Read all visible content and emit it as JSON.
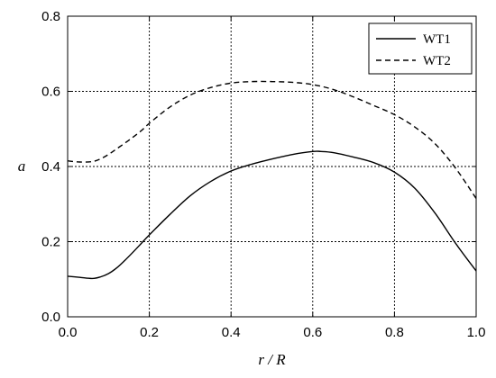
{
  "chart_data": {
    "type": "line",
    "xlabel": "r / R",
    "ylabel": "a",
    "xlim": [
      0.0,
      1.0
    ],
    "ylim": [
      0.0,
      0.8
    ],
    "xticks": [
      "0.0",
      "0.2",
      "0.4",
      "0.6",
      "0.8",
      "1.0"
    ],
    "yticks": [
      "0.0",
      "0.2",
      "0.4",
      "0.6",
      "0.8"
    ],
    "grid": true,
    "legend_position": "top-right",
    "series": [
      {
        "name": "WT1",
        "style": "solid",
        "color": "#000000",
        "x": [
          0.0,
          0.03,
          0.06,
          0.08,
          0.1,
          0.12,
          0.14,
          0.16,
          0.18,
          0.2,
          0.25,
          0.3,
          0.35,
          0.4,
          0.45,
          0.5,
          0.55,
          0.6,
          0.62,
          0.65,
          0.7,
          0.75,
          0.8,
          0.85,
          0.9,
          0.95,
          1.0
        ],
        "y": [
          0.108,
          0.105,
          0.102,
          0.106,
          0.115,
          0.13,
          0.15,
          0.172,
          0.195,
          0.218,
          0.272,
          0.322,
          0.36,
          0.388,
          0.406,
          0.42,
          0.432,
          0.44,
          0.44,
          0.437,
          0.425,
          0.41,
          0.385,
          0.342,
          0.275,
          0.195,
          0.122
        ]
      },
      {
        "name": "WT2",
        "style": "dashed",
        "color": "#000000",
        "x": [
          0.0,
          0.03,
          0.06,
          0.08,
          0.1,
          0.12,
          0.15,
          0.18,
          0.2,
          0.25,
          0.3,
          0.35,
          0.4,
          0.45,
          0.5,
          0.55,
          0.6,
          0.65,
          0.7,
          0.75,
          0.8,
          0.85,
          0.9,
          0.95,
          1.0
        ],
        "y": [
          0.415,
          0.412,
          0.413,
          0.42,
          0.432,
          0.447,
          0.47,
          0.495,
          0.515,
          0.558,
          0.59,
          0.61,
          0.622,
          0.626,
          0.626,
          0.624,
          0.618,
          0.605,
          0.585,
          0.562,
          0.538,
          0.505,
          0.46,
          0.395,
          0.315
        ]
      }
    ]
  }
}
